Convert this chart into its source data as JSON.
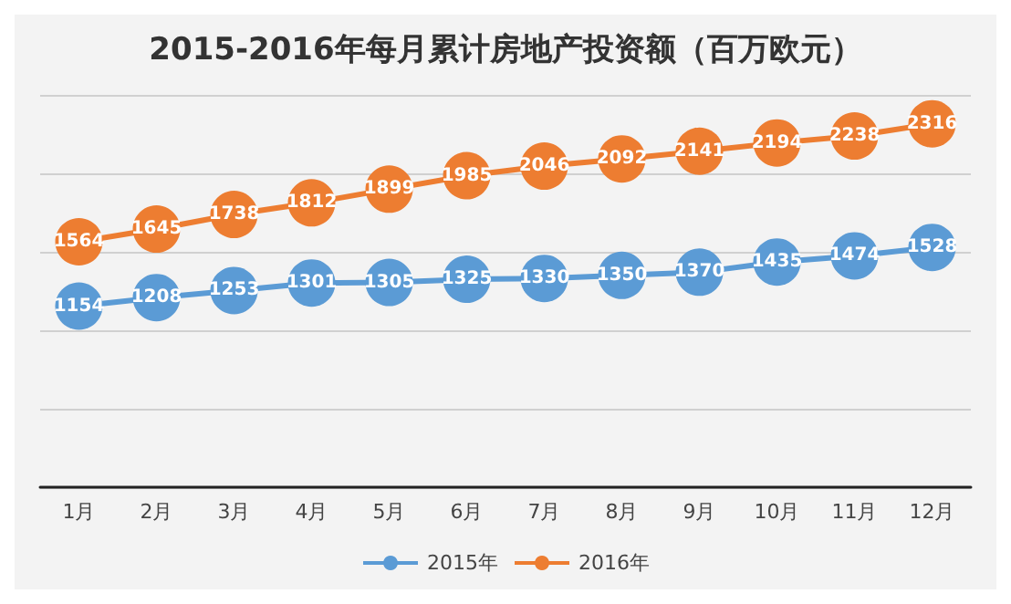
{
  "chart_data": {
    "type": "line",
    "title": "2015-2016年每月累计房地产投资额（百万欧元）",
    "categories": [
      "1月",
      "2月",
      "3月",
      "4月",
      "5月",
      "6月",
      "7月",
      "8月",
      "9月",
      "10月",
      "11月",
      "12月"
    ],
    "series": [
      {
        "name": "2015年",
        "color": "#5b9bd5",
        "values": [
          1154,
          1208,
          1253,
          1301,
          1305,
          1325,
          1330,
          1350,
          1370,
          1435,
          1474,
          1528
        ]
      },
      {
        "name": "2016年",
        "color": "#ed7d31",
        "values": [
          1564,
          1645,
          1738,
          1812,
          1899,
          1985,
          2046,
          2092,
          2141,
          2194,
          2238,
          2316
        ]
      }
    ],
    "ylim": [
      0,
      2500
    ],
    "yticks": [
      {
        "value": 0,
        "label": null
      },
      {
        "value": 500,
        "label": null
      },
      {
        "value": 1000,
        "label": null
      },
      {
        "value": 1500,
        "label": null
      },
      {
        "value": 2000,
        "label": null
      },
      {
        "value": 2500,
        "label": null
      }
    ],
    "tick_labels": "x",
    "grid": "y",
    "legend": "bottom",
    "marker": "circle",
    "line_style": "solid",
    "data_labels": true
  }
}
